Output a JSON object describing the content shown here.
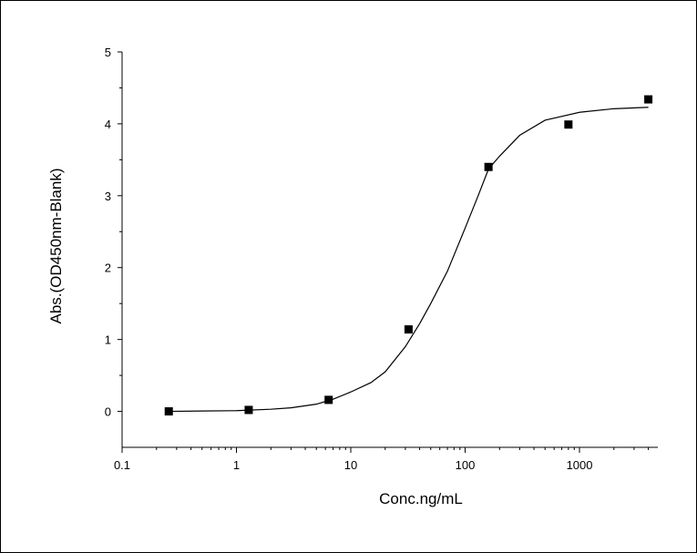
{
  "chart_data": {
    "type": "scatter",
    "xlabel": "Conc.ng/mL",
    "ylabel": "Abs.(OD450nm-Blank)",
    "xscale": "log",
    "xlim": [
      0.1,
      4842
    ],
    "ylim": [
      -0.5,
      5
    ],
    "xticks": [
      0.1,
      1,
      10,
      100,
      1000
    ],
    "yticks": [
      0,
      1,
      2,
      3,
      4,
      5
    ],
    "series": [
      {
        "kind": "markers",
        "marker": "square",
        "color": "#000000",
        "x": [
          0.256,
          1.28,
          6.4,
          32,
          160,
          800,
          4000
        ],
        "values": [
          0.0,
          0.02,
          0.16,
          1.14,
          3.4,
          3.99,
          4.34
        ]
      },
      {
        "kind": "line",
        "color": "#000000",
        "x": [
          0.256,
          0.5,
          1,
          2,
          3,
          5,
          7,
          10,
          15,
          20,
          30,
          40,
          50,
          70,
          100,
          130,
          160,
          200,
          300,
          500,
          1000,
          2000,
          4000
        ],
        "values": [
          0.0,
          0.005,
          0.01,
          0.03,
          0.05,
          0.1,
          0.17,
          0.27,
          0.4,
          0.55,
          0.9,
          1.22,
          1.5,
          1.95,
          2.55,
          3.0,
          3.37,
          3.55,
          3.84,
          4.05,
          4.16,
          4.21,
          4.23
        ]
      }
    ]
  }
}
